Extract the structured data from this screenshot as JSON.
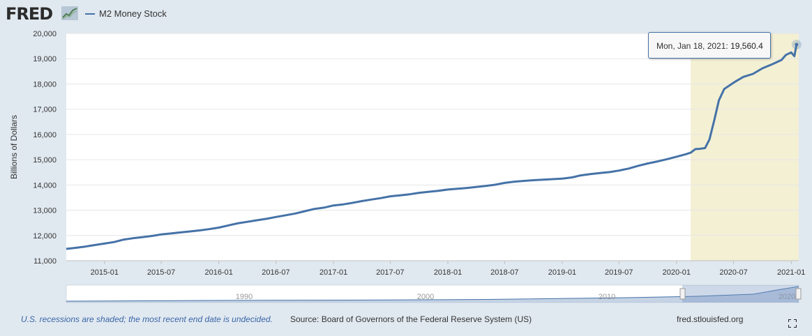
{
  "header": {
    "logo_text": "FRED",
    "logo_icon": "fred-chart-icon",
    "series_label": "M2 Money Stock",
    "series_color": "#4572a7"
  },
  "tooltip": {
    "date": "Mon, Jan 18, 2021:",
    "value": "19,560.4"
  },
  "navigator": {
    "labels": [
      "1990",
      "2000",
      "2010",
      "2020"
    ]
  },
  "footer": {
    "recession_note": "U.S. recessions are shaded; the most recent end date is undecided.",
    "source": "Source: Board of Governors of the Federal Reserve System (US)",
    "url": "fred.stlouisfed.org",
    "fullscreen_icon": "fullscreen-icon"
  },
  "chart_data": {
    "type": "line",
    "title": "",
    "xlabel": "",
    "ylabel": "Billions of Dollars",
    "ylim": [
      11000,
      20000
    ],
    "yticks": [
      "11,000",
      "12,000",
      "13,000",
      "14,000",
      "15,000",
      "16,000",
      "17,000",
      "18,000",
      "19,000",
      "20,000"
    ],
    "xticks": [
      "2015-01",
      "2015-07",
      "2016-01",
      "2016-07",
      "2017-01",
      "2017-07",
      "2018-01",
      "2018-07",
      "2019-01",
      "2019-07",
      "2020-01",
      "2020-07",
      "2021-01"
    ],
    "xlim": [
      "2014-09-01",
      "2021-01-25"
    ],
    "grid": true,
    "recession": {
      "start": "2020-02-15",
      "end": "2021-01-25",
      "color": "#f3f0d4"
    },
    "series": [
      {
        "name": "M2 Money Stock",
        "color": "#4572a7",
        "x": [
          "2014-09-01",
          "2014-10-01",
          "2014-11-01",
          "2014-12-01",
          "2015-01-01",
          "2015-02-01",
          "2015-03-01",
          "2015-04-01",
          "2015-05-01",
          "2015-06-01",
          "2015-07-01",
          "2015-08-01",
          "2015-09-01",
          "2015-10-01",
          "2015-11-01",
          "2015-12-01",
          "2016-01-01",
          "2016-02-01",
          "2016-03-01",
          "2016-04-01",
          "2016-05-01",
          "2016-06-01",
          "2016-07-01",
          "2016-08-01",
          "2016-09-01",
          "2016-10-01",
          "2016-11-01",
          "2016-12-01",
          "2017-01-01",
          "2017-02-01",
          "2017-03-01",
          "2017-04-01",
          "2017-05-01",
          "2017-06-01",
          "2017-07-01",
          "2017-08-01",
          "2017-09-01",
          "2017-10-01",
          "2017-11-01",
          "2017-12-01",
          "2018-01-01",
          "2018-02-01",
          "2018-03-01",
          "2018-04-01",
          "2018-05-01",
          "2018-06-01",
          "2018-07-01",
          "2018-08-01",
          "2018-09-01",
          "2018-10-01",
          "2018-11-01",
          "2018-12-01",
          "2019-01-01",
          "2019-02-01",
          "2019-03-01",
          "2019-04-01",
          "2019-05-01",
          "2019-06-01",
          "2019-07-01",
          "2019-08-01",
          "2019-09-01",
          "2019-10-01",
          "2019-11-01",
          "2019-12-01",
          "2020-01-01",
          "2020-02-01",
          "2020-02-15",
          "2020-03-01",
          "2020-03-15",
          "2020-04-01",
          "2020-04-15",
          "2020-05-01",
          "2020-05-15",
          "2020-06-01",
          "2020-07-01",
          "2020-08-01",
          "2020-09-01",
          "2020-10-01",
          "2020-11-01",
          "2020-12-01",
          "2020-12-15",
          "2021-01-01",
          "2021-01-11",
          "2021-01-18"
        ],
        "values": [
          11470,
          11510,
          11560,
          11620,
          11680,
          11740,
          11830,
          11890,
          11930,
          11980,
          12040,
          12080,
          12120,
          12160,
          12200,
          12250,
          12310,
          12400,
          12480,
          12540,
          12600,
          12660,
          12730,
          12800,
          12870,
          12960,
          13050,
          13100,
          13190,
          13230,
          13290,
          13360,
          13420,
          13480,
          13550,
          13590,
          13630,
          13690,
          13730,
          13770,
          13820,
          13850,
          13880,
          13920,
          13960,
          14010,
          14080,
          14130,
          14160,
          14190,
          14210,
          14230,
          14250,
          14300,
          14380,
          14430,
          14470,
          14510,
          14570,
          14650,
          14760,
          14850,
          14930,
          15020,
          15120,
          15220,
          15280,
          15420,
          15430,
          15460,
          15800,
          16600,
          17350,
          17800,
          18050,
          18280,
          18400,
          18620,
          18780,
          18950,
          19150,
          19250,
          19100,
          19560
        ]
      }
    ]
  }
}
